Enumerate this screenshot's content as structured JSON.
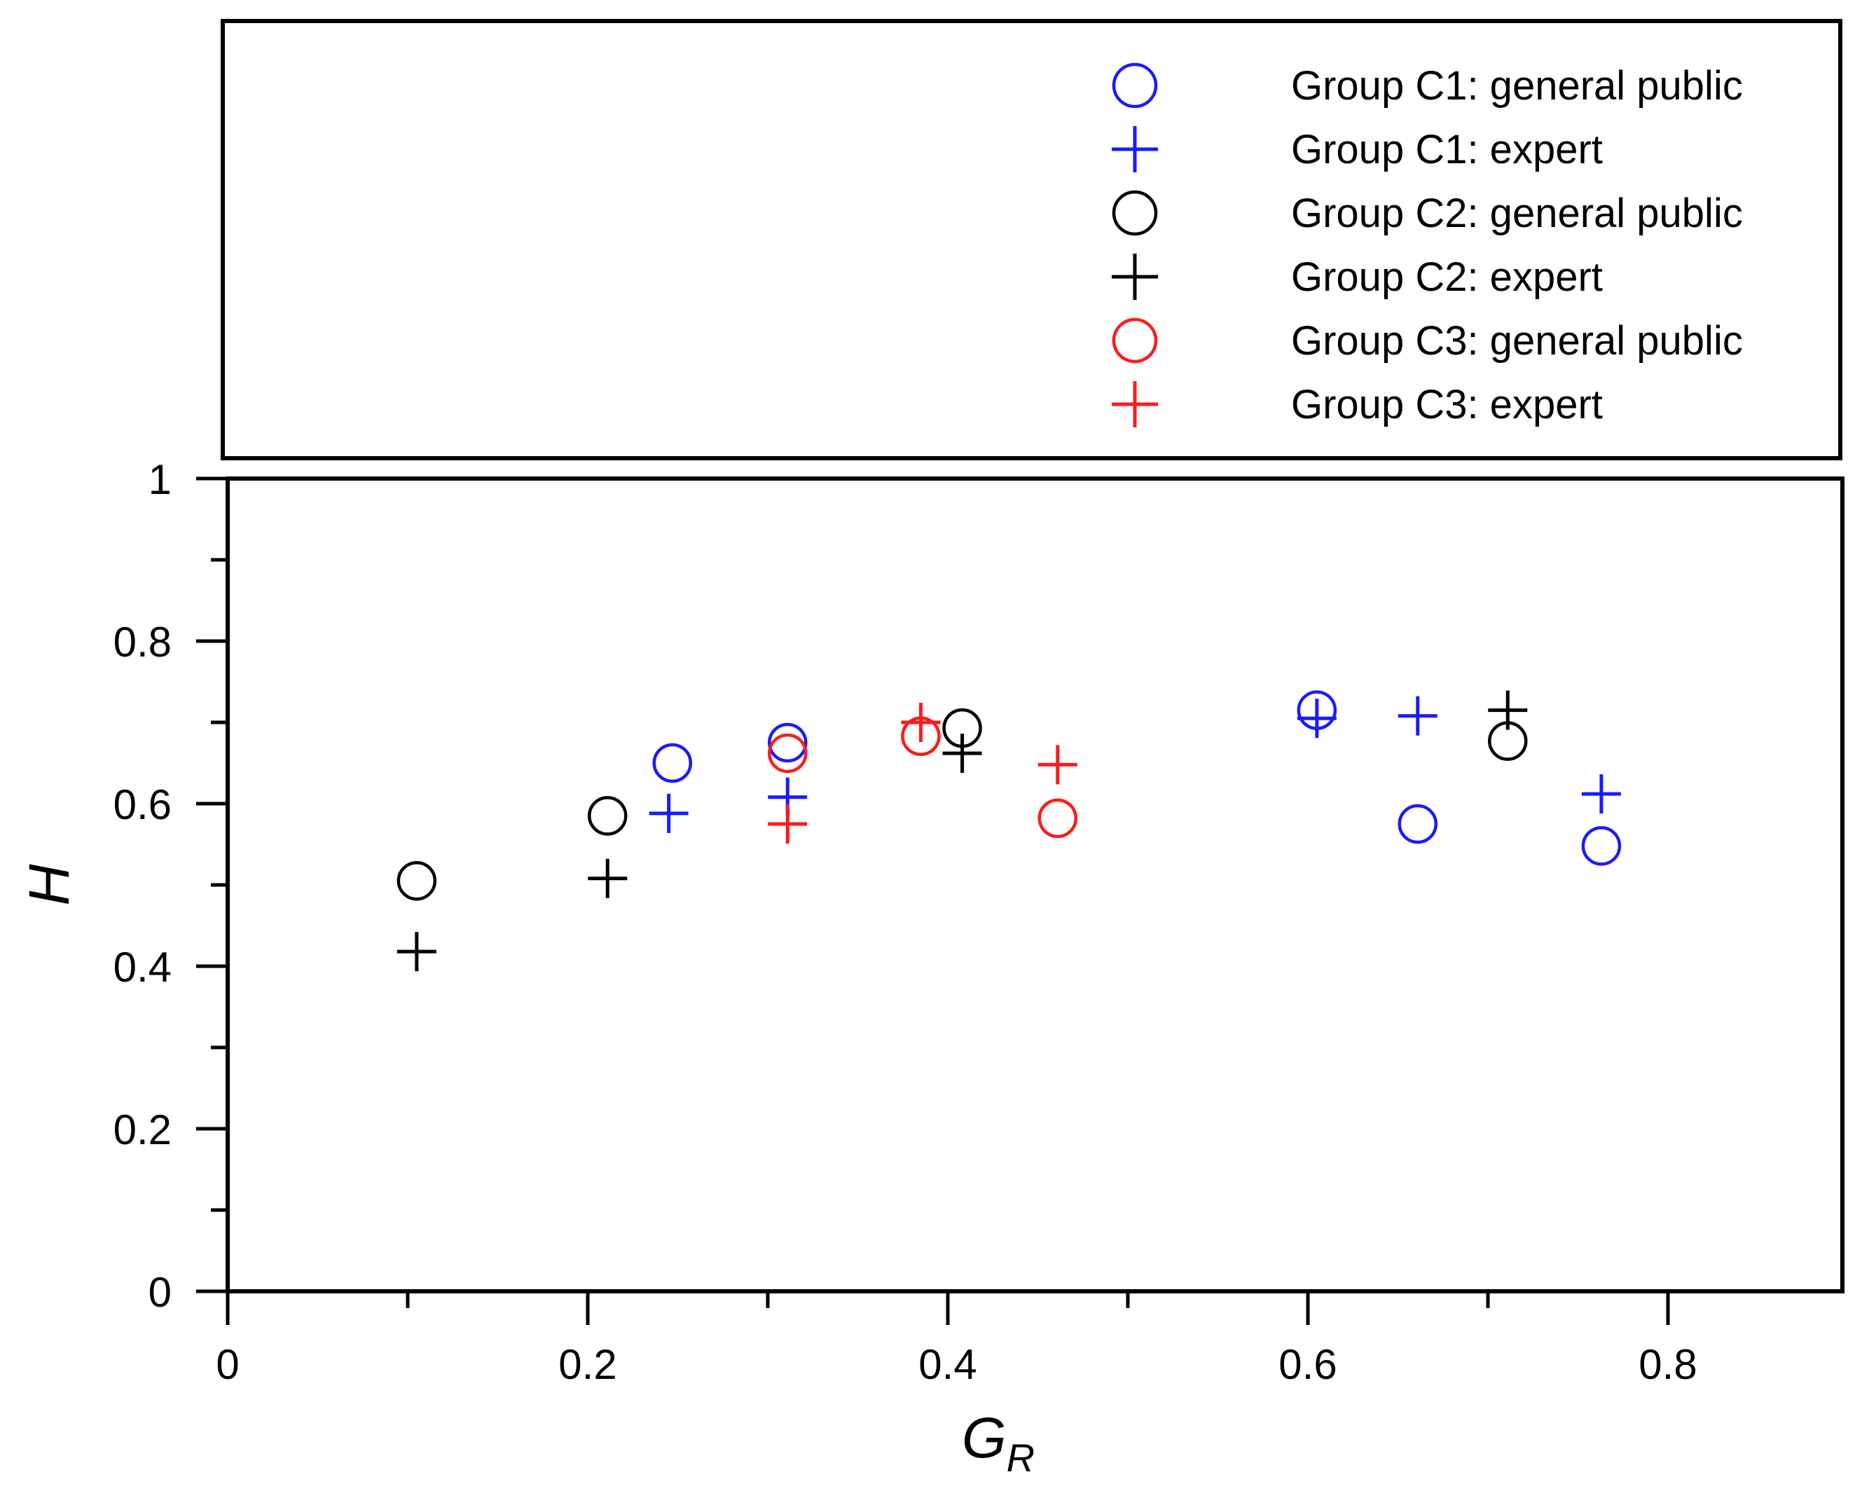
{
  "chart_data": {
    "type": "scatter",
    "title": "",
    "xlabel": "G",
    "xlabel_subscript": "R",
    "ylabel": "H",
    "xlim": [
      0,
      0.9
    ],
    "ylim": [
      0,
      1
    ],
    "xticks": [
      0,
      0.2,
      0.4,
      0.6,
      0.8
    ],
    "xtick_labels": [
      "0",
      "0.2",
      "0.4",
      "0.6",
      "0.8"
    ],
    "xminor": [
      0.1,
      0.3,
      0.5,
      0.7
    ],
    "yticks": [
      0,
      0.2,
      0.4,
      0.6,
      0.8,
      1
    ],
    "ytick_labels": [
      "0",
      "0.2",
      "0.4",
      "0.6",
      "0.8",
      "1"
    ],
    "yminor": [
      0.1,
      0.3,
      0.5,
      0.7,
      0.9
    ],
    "grid": false,
    "legend_position": "top",
    "series": [
      {
        "name": "Group C1: general public",
        "marker": "circle",
        "color": "#1a1aff",
        "points": [
          {
            "x": 0.247,
            "y": 0.65
          },
          {
            "x": 0.311,
            "y": 0.675
          },
          {
            "x": 0.605,
            "y": 0.715
          },
          {
            "x": 0.661,
            "y": 0.575
          },
          {
            "x": 0.763,
            "y": 0.548
          }
        ]
      },
      {
        "name": "Group C1: expert",
        "marker": "plus",
        "color": "#1a1aff",
        "points": [
          {
            "x": 0.245,
            "y": 0.588
          },
          {
            "x": 0.311,
            "y": 0.608
          },
          {
            "x": 0.605,
            "y": 0.705
          },
          {
            "x": 0.661,
            "y": 0.708
          },
          {
            "x": 0.763,
            "y": 0.612
          }
        ]
      },
      {
        "name": "Group C2: general public",
        "marker": "circle",
        "color": "#000000",
        "points": [
          {
            "x": 0.105,
            "y": 0.505
          },
          {
            "x": 0.211,
            "y": 0.585
          },
          {
            "x": 0.408,
            "y": 0.693
          },
          {
            "x": 0.711,
            "y": 0.677
          }
        ]
      },
      {
        "name": "Group C2: expert",
        "marker": "plus",
        "color": "#000000",
        "points": [
          {
            "x": 0.105,
            "y": 0.418
          },
          {
            "x": 0.211,
            "y": 0.508
          },
          {
            "x": 0.408,
            "y": 0.662
          },
          {
            "x": 0.711,
            "y": 0.715
          }
        ]
      },
      {
        "name": "Group C3: general public",
        "marker": "circle",
        "color": "#ff1a1a",
        "points": [
          {
            "x": 0.311,
            "y": 0.662
          },
          {
            "x": 0.385,
            "y": 0.683
          },
          {
            "x": 0.461,
            "y": 0.582
          }
        ]
      },
      {
        "name": "Group C3: expert",
        "marker": "plus",
        "color": "#ff1a1a",
        "points": [
          {
            "x": 0.311,
            "y": 0.575
          },
          {
            "x": 0.385,
            "y": 0.7
          },
          {
            "x": 0.461,
            "y": 0.648
          }
        ]
      }
    ]
  }
}
